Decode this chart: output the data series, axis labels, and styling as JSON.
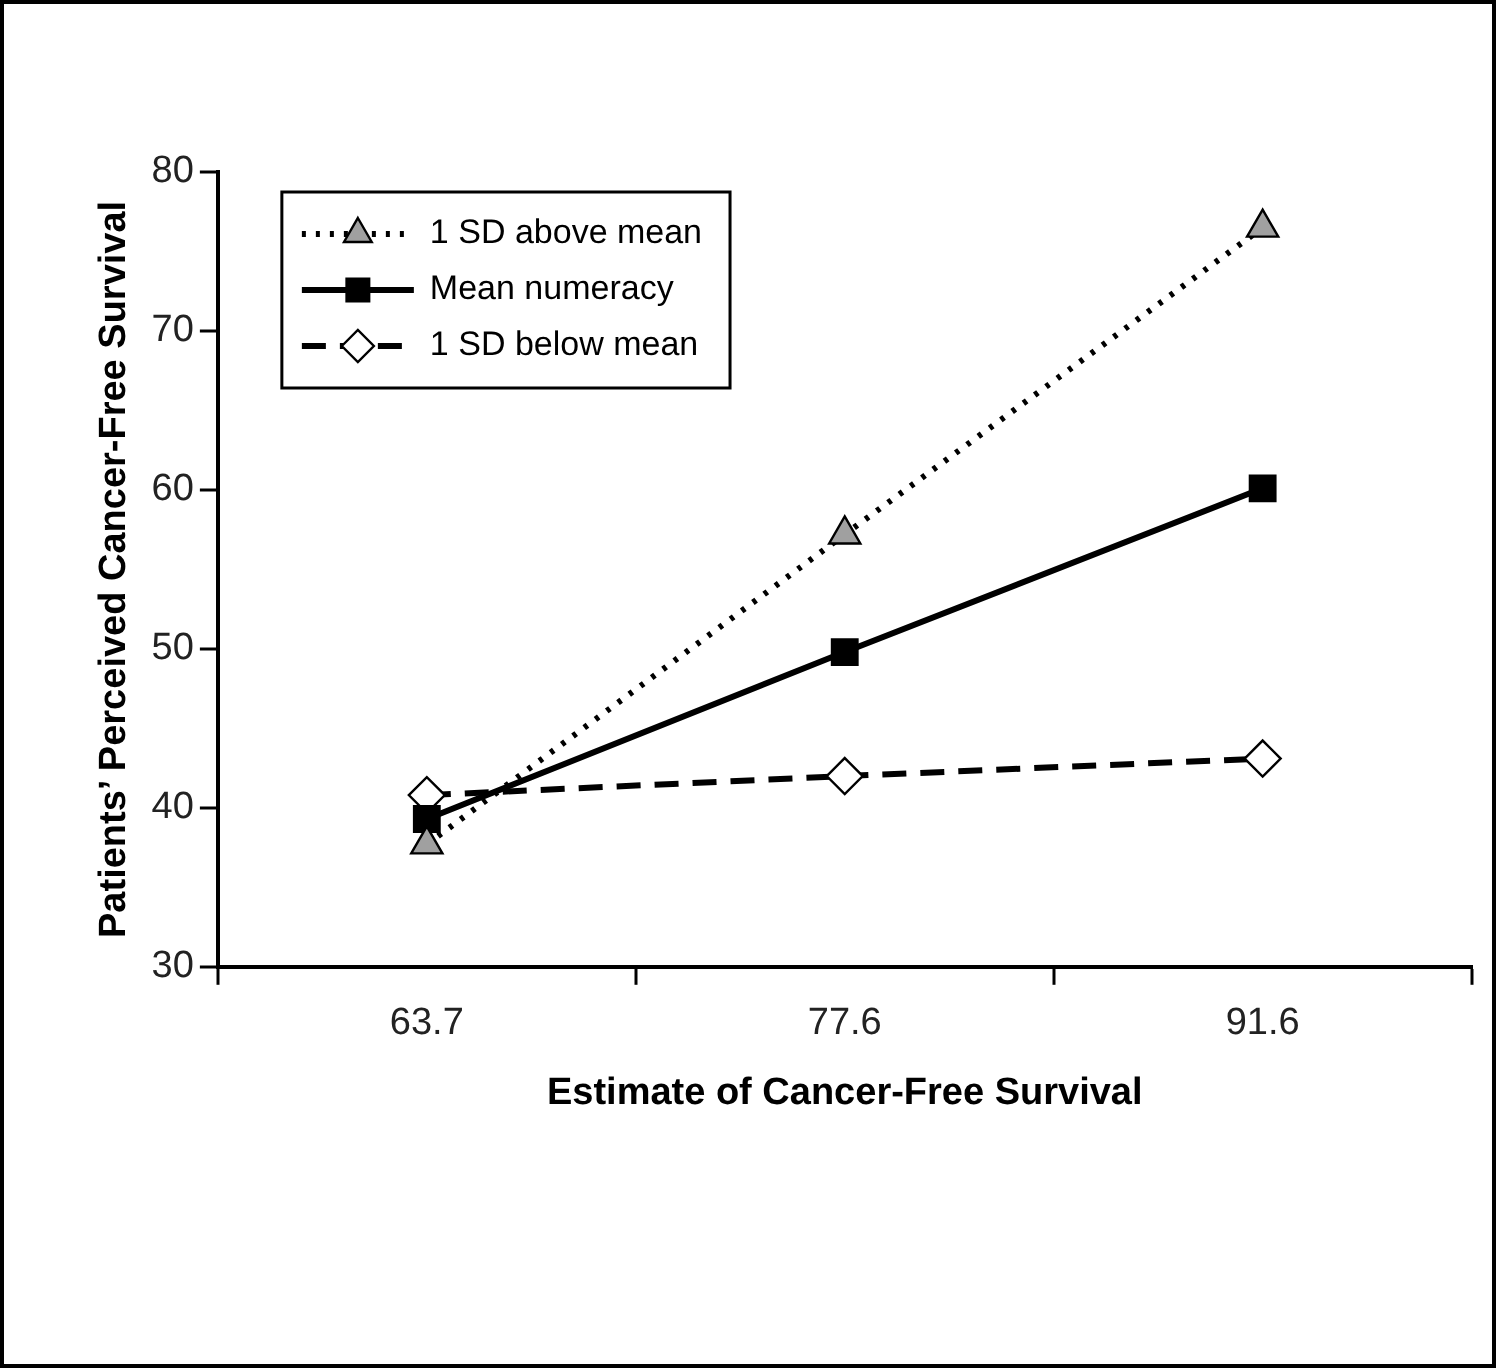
{
  "chart_data": {
    "type": "line",
    "xlabel": "Estimate of Cancer-Free Survival",
    "ylabel": "Patients’ Perceived Cancer-Free Survival",
    "categories": [
      "63.7",
      "77.6",
      "91.6"
    ],
    "ylim": [
      30,
      80
    ],
    "yticks": [
      30,
      40,
      50,
      60,
      70,
      80
    ],
    "grid": false,
    "legend": "top left",
    "series": [
      {
        "name": "1 SD above mean",
        "color": "#a0a0a0",
        "marker": "triangle",
        "line_style": "dotted",
        "values": [
          37.7,
          57.2,
          76.5
        ]
      },
      {
        "name": "Mean numeracy",
        "color": "#000000",
        "marker": "square",
        "line_style": "solid",
        "values": [
          39.3,
          49.8,
          60.1
        ]
      },
      {
        "name": "1 SD below mean",
        "color": "#ffffff",
        "marker": "diamond",
        "line_style": "dashed",
        "values": [
          40.8,
          42.0,
          43.1
        ]
      }
    ]
  }
}
